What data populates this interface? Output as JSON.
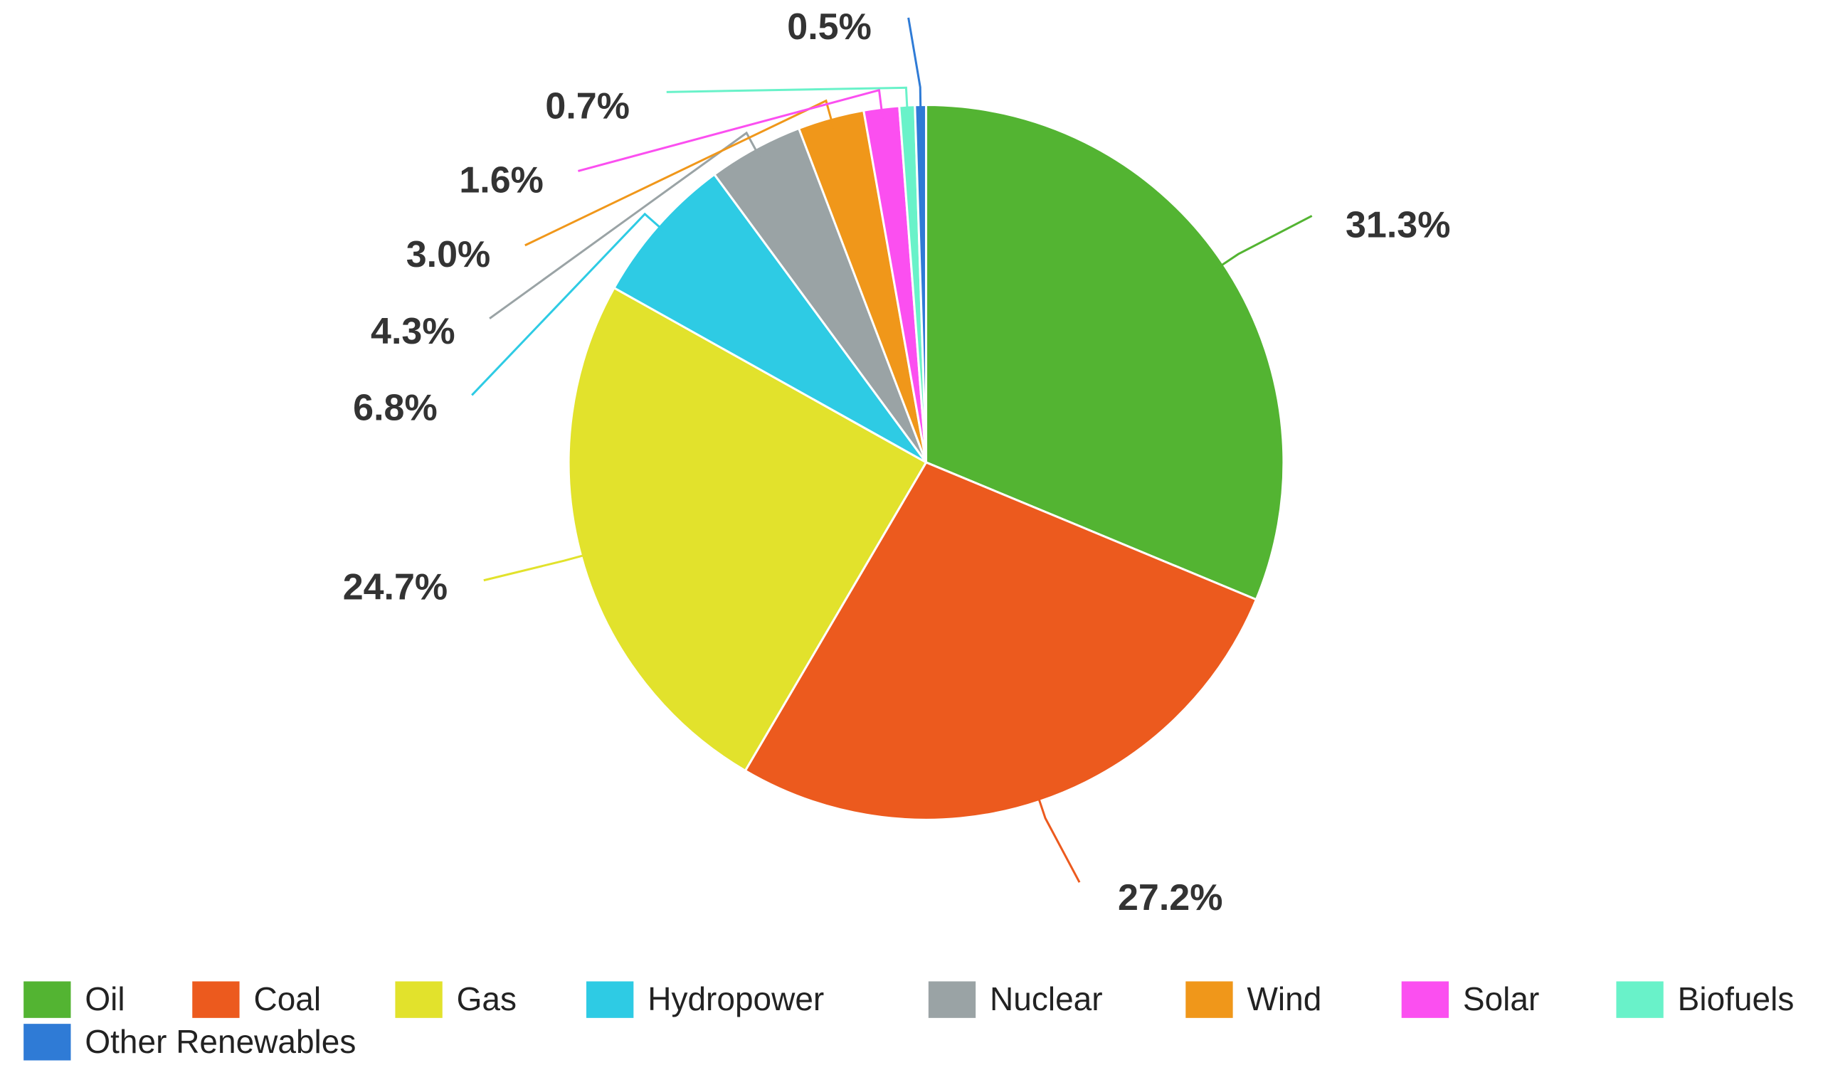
{
  "chart_data": {
    "type": "pie",
    "categories": [
      "Oil",
      "Coal",
      "Gas",
      "Hydropower",
      "Nuclear",
      "Wind",
      "Solar",
      "Biofuels",
      "Other Renewables"
    ],
    "values": [
      31.3,
      27.2,
      24.7,
      6.8,
      4.3,
      3.0,
      1.6,
      0.7,
      0.5
    ],
    "value_labels": [
      "31.3%",
      "27.2%",
      "24.7%",
      "6.8%",
      "4.3%",
      "3.0%",
      "1.6%",
      "0.7%",
      "0.5%"
    ],
    "colors": [
      "#53b432",
      "#ec5a1e",
      "#e2e22c",
      "#2ecbe4",
      "#9aa3a5",
      "#f0971a",
      "#fb4ff0",
      "#69f2c9",
      "#2f7bd6"
    ],
    "legend": "bottom"
  }
}
